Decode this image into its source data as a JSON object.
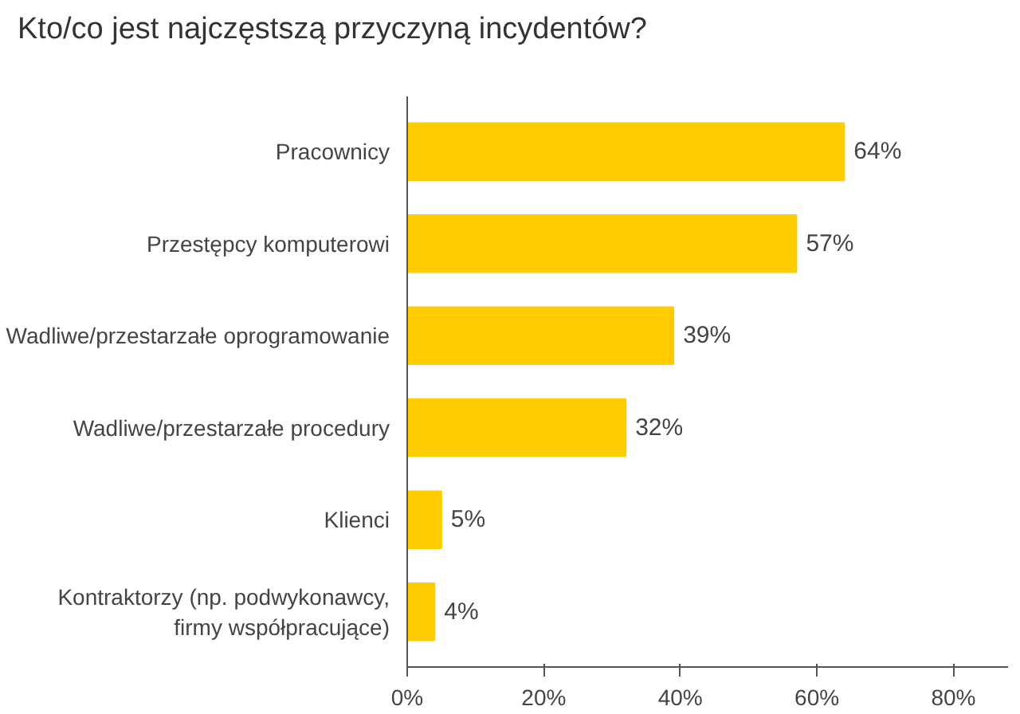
{
  "chart_data": {
    "type": "bar",
    "orientation": "horizontal",
    "title": "Kto/co jest najczęstszą przyczyną incydentów?",
    "categories": [
      "Pracownicy",
      "Przestępcy komputerowi",
      "Wadliwe/przestarzałe oprogramowanie",
      "Wadliwe/przestarzałe procedury",
      "Klienci",
      "Kontraktorzy (np. podwykonawcy,\nfirmy współpracujące)"
    ],
    "values": [
      64,
      57,
      39,
      32,
      5,
      4
    ],
    "value_labels": [
      "64%",
      "57%",
      "39%",
      "32%",
      "5%",
      "4%"
    ],
    "color": "#ffcc00",
    "xlim": [
      0,
      88
    ],
    "xticks": [
      {
        "value": 0,
        "label": "0%"
      },
      {
        "value": 20,
        "label": "20%"
      },
      {
        "value": 40,
        "label": "40%"
      },
      {
        "value": 60,
        "label": "60%"
      },
      {
        "value": 80,
        "label": "80%"
      }
    ],
    "grid": false
  }
}
